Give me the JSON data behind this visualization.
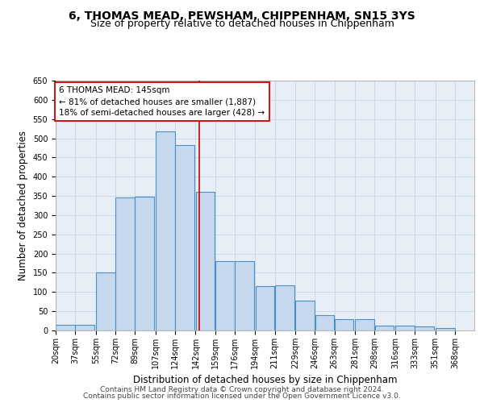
{
  "title_line1": "6, THOMAS MEAD, PEWSHAM, CHIPPENHAM, SN15 3YS",
  "title_line2": "Size of property relative to detached houses in Chippenham",
  "xlabel": "Distribution of detached houses by size in Chippenham",
  "ylabel": "Number of detached properties",
  "footer_line1": "Contains HM Land Registry data © Crown copyright and database right 2024.",
  "footer_line2": "Contains public sector information licensed under the Open Government Licence v3.0.",
  "annotation_title": "6 THOMAS MEAD: 145sqm",
  "annotation_line1": "← 81% of detached houses are smaller (1,887)",
  "annotation_line2": "18% of semi-detached houses are larger (428) →",
  "bar_left_edges": [
    20,
    37,
    55,
    72,
    89,
    107,
    124,
    142,
    159,
    176,
    194,
    211,
    229,
    246,
    263,
    281,
    298,
    316,
    333,
    351
  ],
  "bar_widths": [
    17,
    17,
    17,
    17,
    17,
    17,
    17,
    17,
    17,
    17,
    17,
    17,
    17,
    17,
    17,
    17,
    17,
    17,
    17,
    17
  ],
  "bar_heights": [
    15,
    15,
    150,
    347,
    348,
    518,
    483,
    360,
    180,
    180,
    115,
    117,
    77,
    40,
    30,
    30,
    13,
    13,
    10,
    7
  ],
  "bar_facecolor": "#c5d8ed",
  "bar_edgecolor": "#4a90c4",
  "bar_linewidth": 0.8,
  "vline_x": 145,
  "vline_color": "#cc0000",
  "vline_lw": 1.2,
  "annotation_box_color": "#cc0000",
  "xlim_left": 20,
  "xlim_right": 385,
  "ylim_bottom": 0,
  "ylim_top": 650,
  "yticks": [
    0,
    50,
    100,
    150,
    200,
    250,
    300,
    350,
    400,
    450,
    500,
    550,
    600,
    650
  ],
  "xtick_labels": [
    "20sqm",
    "37sqm",
    "55sqm",
    "72sqm",
    "89sqm",
    "107sqm",
    "124sqm",
    "142sqm",
    "159sqm",
    "176sqm",
    "194sqm",
    "211sqm",
    "229sqm",
    "246sqm",
    "263sqm",
    "281sqm",
    "298sqm",
    "316sqm",
    "333sqm",
    "351sqm",
    "368sqm"
  ],
  "xtick_positions": [
    20,
    37,
    55,
    72,
    89,
    107,
    124,
    142,
    159,
    176,
    194,
    211,
    229,
    246,
    263,
    281,
    298,
    316,
    333,
    351,
    368
  ],
  "grid_color": "#c8d4e8",
  "plot_bg_color": "#e8eef6",
  "title_fontsize": 10,
  "subtitle_fontsize": 9,
  "axis_label_fontsize": 8.5,
  "tick_fontsize": 7,
  "annotation_fontsize": 7.5,
  "footer_fontsize": 6.5
}
